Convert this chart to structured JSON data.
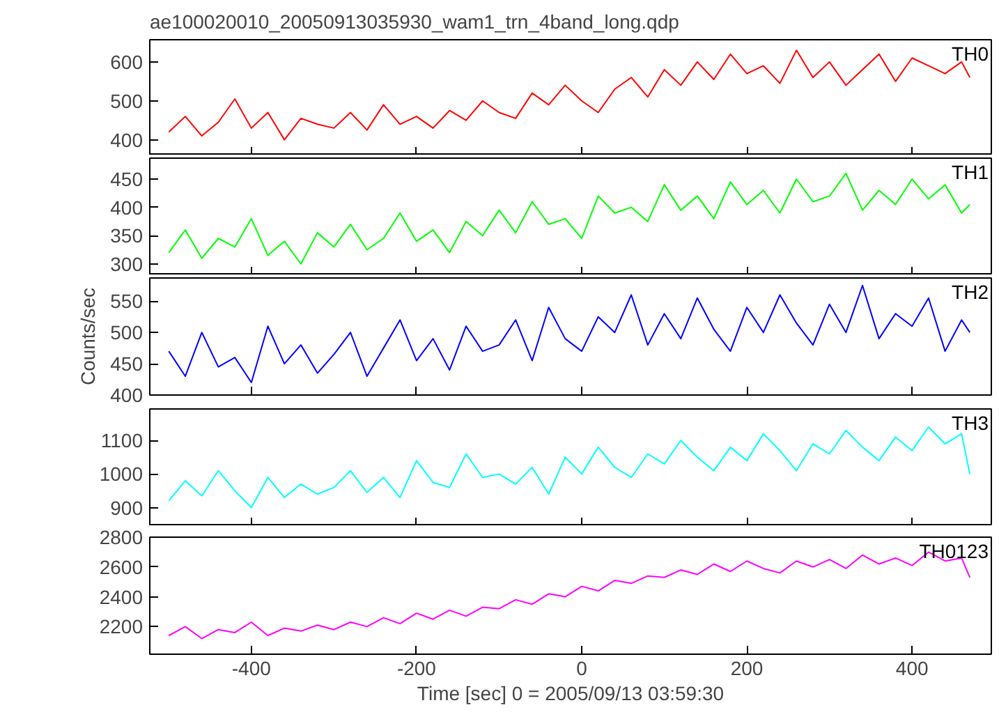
{
  "chart_data": [
    {
      "type": "line",
      "title": "ae100020010_20050913035930_wam1_trn_4band_long.qdp",
      "grid": false,
      "tick_labels": "y",
      "xlim": [
        -523,
        496
      ],
      "xticks": [
        -400,
        -200,
        0,
        200,
        400
      ],
      "ylim": [
        360,
        657
      ],
      "yticks": [
        400,
        500,
        600
      ],
      "x": [
        -500,
        -480,
        -460,
        -440,
        -420,
        -400,
        -380,
        -360,
        -340,
        -320,
        -300,
        -280,
        -260,
        -240,
        -220,
        -200,
        -180,
        -160,
        -140,
        -120,
        -100,
        -80,
        -60,
        -40,
        -20,
        0,
        20,
        40,
        60,
        80,
        100,
        120,
        140,
        160,
        180,
        200,
        220,
        240,
        260,
        280,
        300,
        320,
        340,
        360,
        380,
        400,
        420,
        440,
        460,
        470
      ],
      "series": [
        {
          "name": "TH0",
          "color": "#ff0000",
          "values": [
            420,
            460,
            410,
            445,
            505,
            430,
            470,
            400,
            455,
            440,
            430,
            470,
            425,
            490,
            440,
            460,
            430,
            475,
            450,
            500,
            470,
            455,
            520,
            490,
            540,
            500,
            470,
            530,
            560,
            510,
            580,
            540,
            600,
            555,
            620,
            570,
            590,
            545,
            630,
            560,
            600,
            540,
            580,
            620,
            550,
            610,
            590,
            570,
            600,
            560
          ]
        }
      ]
    },
    {
      "type": "line",
      "grid": false,
      "tick_labels": "y",
      "xlim": [
        -523,
        496
      ],
      "xticks": [
        -400,
        -200,
        0,
        200,
        400
      ],
      "ylim": [
        280,
        487
      ],
      "yticks": [
        300,
        350,
        400,
        450
      ],
      "x": [
        -500,
        -480,
        -460,
        -440,
        -420,
        -400,
        -380,
        -360,
        -340,
        -320,
        -300,
        -280,
        -260,
        -240,
        -220,
        -200,
        -180,
        -160,
        -140,
        -120,
        -100,
        -80,
        -60,
        -40,
        -20,
        0,
        20,
        40,
        60,
        80,
        100,
        120,
        140,
        160,
        180,
        200,
        220,
        240,
        260,
        280,
        300,
        320,
        340,
        360,
        380,
        400,
        420,
        440,
        460,
        470
      ],
      "series": [
        {
          "name": "TH1",
          "color": "#00ff00",
          "values": [
            320,
            360,
            310,
            345,
            330,
            380,
            315,
            340,
            300,
            355,
            330,
            370,
            325,
            345,
            390,
            340,
            360,
            320,
            375,
            350,
            395,
            355,
            410,
            370,
            380,
            345,
            420,
            390,
            400,
            375,
            440,
            395,
            420,
            380,
            445,
            405,
            430,
            390,
            450,
            410,
            420,
            460,
            395,
            430,
            405,
            450,
            415,
            440,
            390,
            405
          ]
        }
      ]
    },
    {
      "type": "line",
      "ylabel": "Counts/sec",
      "grid": false,
      "tick_labels": "y",
      "xlim": [
        -523,
        496
      ],
      "xticks": [
        -400,
        -200,
        0,
        200,
        400
      ],
      "ylim": [
        400,
        587
      ],
      "yticks": [
        400,
        450,
        500,
        550
      ],
      "x": [
        -500,
        -480,
        -460,
        -440,
        -420,
        -400,
        -380,
        -360,
        -340,
        -320,
        -300,
        -280,
        -260,
        -240,
        -220,
        -200,
        -180,
        -160,
        -140,
        -120,
        -100,
        -80,
        -60,
        -40,
        -20,
        0,
        20,
        40,
        60,
        80,
        100,
        120,
        140,
        160,
        180,
        200,
        220,
        240,
        260,
        280,
        300,
        320,
        340,
        360,
        380,
        400,
        420,
        440,
        460,
        470
      ],
      "series": [
        {
          "name": "TH2",
          "color": "#0000ff",
          "values": [
            470,
            430,
            500,
            445,
            460,
            420,
            510,
            450,
            480,
            435,
            465,
            500,
            430,
            475,
            520,
            455,
            490,
            440,
            510,
            470,
            480,
            520,
            455,
            540,
            490,
            470,
            525,
            500,
            560,
            480,
            530,
            490,
            555,
            505,
            470,
            540,
            500,
            560,
            515,
            480,
            545,
            500,
            575,
            490,
            530,
            510,
            555,
            470,
            520,
            500
          ]
        }
      ]
    },
    {
      "type": "line",
      "grid": false,
      "tick_labels": "y",
      "xlim": [
        -523,
        496
      ],
      "xticks": [
        -400,
        -200,
        0,
        200,
        400
      ],
      "ylim": [
        845,
        1194
      ],
      "yticks": [
        900,
        1000,
        1100
      ],
      "x": [
        -500,
        -480,
        -460,
        -440,
        -420,
        -400,
        -380,
        -360,
        -340,
        -320,
        -300,
        -280,
        -260,
        -240,
        -220,
        -200,
        -180,
        -160,
        -140,
        -120,
        -100,
        -80,
        -60,
        -40,
        -20,
        0,
        20,
        40,
        60,
        80,
        100,
        120,
        140,
        160,
        180,
        200,
        220,
        240,
        260,
        280,
        300,
        320,
        340,
        360,
        380,
        400,
        420,
        440,
        460,
        470
      ],
      "series": [
        {
          "name": "TH3",
          "color": "#00ffff",
          "values": [
            920,
            980,
            935,
            1010,
            950,
            900,
            990,
            930,
            970,
            940,
            960,
            1010,
            945,
            990,
            930,
            1040,
            975,
            960,
            1060,
            990,
            1000,
            970,
            1020,
            940,
            1050,
            1000,
            1080,
            1020,
            990,
            1060,
            1030,
            1100,
            1050,
            1010,
            1080,
            1040,
            1120,
            1070,
            1010,
            1090,
            1060,
            1130,
            1080,
            1040,
            1110,
            1070,
            1140,
            1090,
            1120,
            1000
          ]
        }
      ]
    },
    {
      "type": "line",
      "xlabel": "Time [sec] 0 = 2005/09/13 03:59:30",
      "grid": false,
      "xlim": [
        -523,
        496
      ],
      "xticks": [
        -400,
        -200,
        0,
        200,
        400
      ],
      "ylim": [
        2015,
        2800
      ],
      "yticks": [
        2200,
        2400,
        2600,
        2800
      ],
      "x": [
        -500,
        -480,
        -460,
        -440,
        -420,
        -400,
        -380,
        -360,
        -340,
        -320,
        -300,
        -280,
        -260,
        -240,
        -220,
        -200,
        -180,
        -160,
        -140,
        -120,
        -100,
        -80,
        -60,
        -40,
        -20,
        0,
        20,
        40,
        60,
        80,
        100,
        120,
        140,
        160,
        180,
        200,
        220,
        240,
        260,
        280,
        300,
        320,
        340,
        360,
        380,
        400,
        420,
        440,
        460,
        470
      ],
      "series": [
        {
          "name": "TH0123",
          "color": "#ff00ff",
          "values": [
            2140,
            2200,
            2120,
            2180,
            2160,
            2230,
            2140,
            2190,
            2170,
            2210,
            2180,
            2230,
            2200,
            2260,
            2220,
            2290,
            2250,
            2310,
            2270,
            2330,
            2320,
            2380,
            2350,
            2420,
            2400,
            2470,
            2440,
            2510,
            2490,
            2540,
            2530,
            2580,
            2550,
            2620,
            2570,
            2640,
            2590,
            2560,
            2640,
            2600,
            2650,
            2590,
            2680,
            2620,
            2660,
            2610,
            2700,
            2640,
            2660,
            2530
          ]
        }
      ]
    }
  ]
}
